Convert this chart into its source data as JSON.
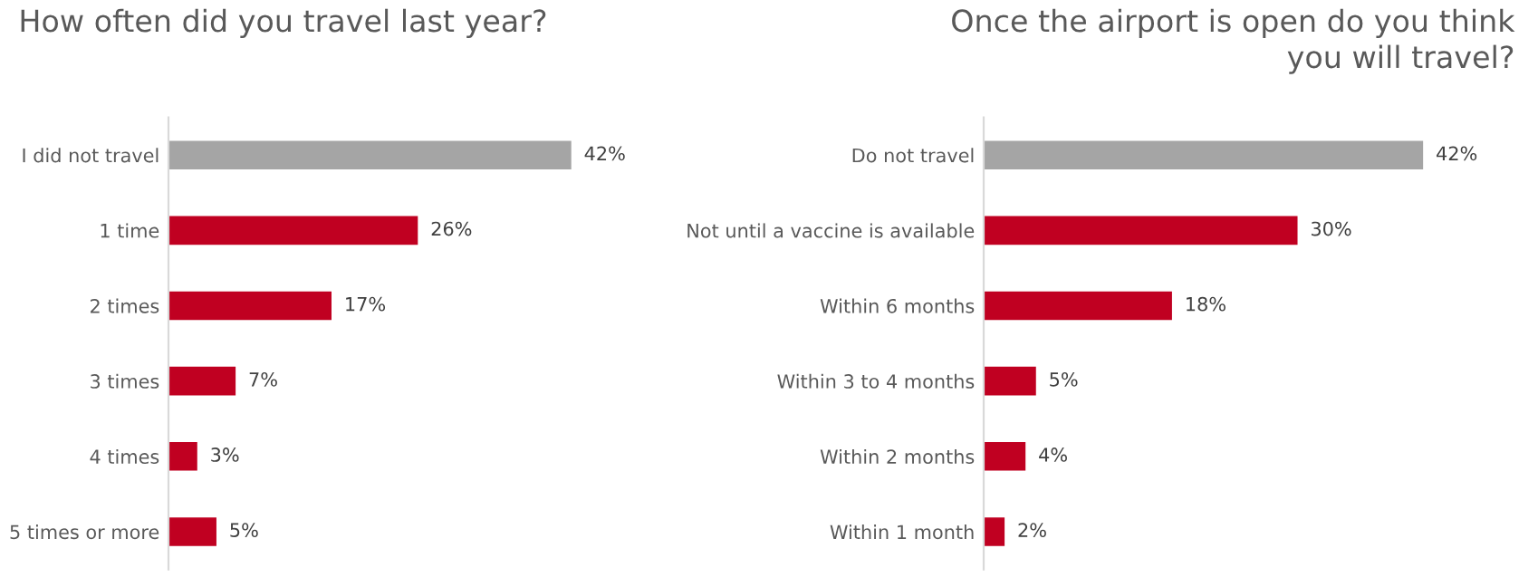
{
  "chart_data": [
    {
      "type": "bar",
      "orientation": "horizontal",
      "title": "How often did you travel last year?",
      "categories": [
        "I did not travel",
        "1 time",
        "2 times",
        "3 times",
        "4 times",
        "5 times or more"
      ],
      "values": [
        42,
        26,
        17,
        7,
        3,
        5
      ],
      "colors": [
        "#a5a5a5",
        "#c00021",
        "#c00021",
        "#c00021",
        "#c00021",
        "#c00021"
      ],
      "value_labels": [
        "42%",
        "26%",
        "17%",
        "7%",
        "3%",
        "5%"
      ],
      "tick_labels": "y",
      "grid": false,
      "legend": false
    },
    {
      "type": "bar",
      "orientation": "horizontal",
      "title": "Once the airport is open do you think\nyou will travel?",
      "categories": [
        "Do not travel",
        "Not until a vaccine is available",
        "Within 6 months",
        "Within 3 to 4 months",
        "Within 2 months",
        "Within 1 month"
      ],
      "values": [
        42,
        30,
        18,
        5,
        4,
        2
      ],
      "colors": [
        "#a5a5a5",
        "#c00021",
        "#c00021",
        "#c00021",
        "#c00021",
        "#c00021"
      ],
      "value_labels": [
        "42%",
        "30%",
        "18%",
        "5%",
        "4%",
        "2%"
      ],
      "tick_labels": "y",
      "grid": false,
      "legend": false
    }
  ]
}
